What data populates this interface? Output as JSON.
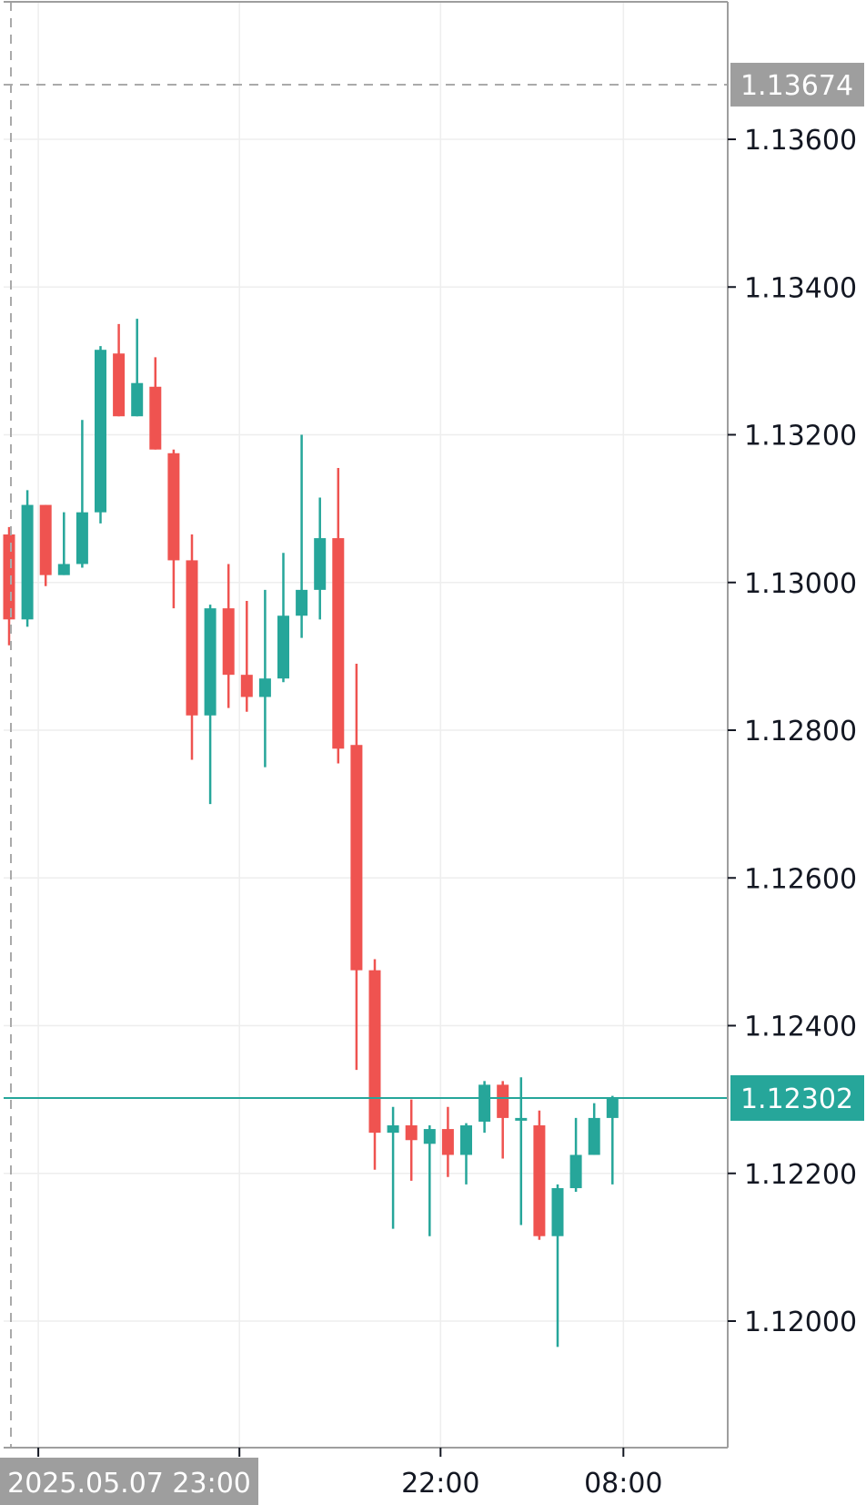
{
  "chart_data": {
    "type": "candlestick",
    "y_ticks": [
      "1.13600",
      "1.13400",
      "1.13200",
      "1.13000",
      "1.12800",
      "1.12600",
      "1.12400",
      "1.12200",
      "1.12000"
    ],
    "ylim": [
      1.1185,
      1.1382
    ],
    "x_tick_labels": [
      ":00",
      "22:00",
      "08:00"
    ],
    "crosshair_price": "1.13674",
    "crosshair_time": "2025.05.07 23:00",
    "last_price": "1.12302",
    "colors": {
      "up": "#26a69a",
      "down": "#ef5350",
      "grid": "#eeeeee",
      "axis": "#9e9e9e",
      "crosshair": "#aaaaaa",
      "crosshair_tag": "#9e9e9e"
    },
    "candles": [
      {
        "o": 1.13065,
        "h": 1.13075,
        "l": 1.12915,
        "c": 1.1295
      },
      {
        "o": 1.1295,
        "h": 1.13125,
        "l": 1.1294,
        "c": 1.13105
      },
      {
        "o": 1.13105,
        "h": 1.13105,
        "l": 1.12995,
        "c": 1.1301
      },
      {
        "o": 1.1301,
        "h": 1.13095,
        "l": 1.1301,
        "c": 1.13025
      },
      {
        "o": 1.13025,
        "h": 1.1322,
        "l": 1.1302,
        "c": 1.13095
      },
      {
        "o": 1.13095,
        "h": 1.1332,
        "l": 1.1308,
        "c": 1.13315
      },
      {
        "o": 1.1331,
        "h": 1.1335,
        "l": 1.13225,
        "c": 1.13225
      },
      {
        "o": 1.13225,
        "h": 1.13357,
        "l": 1.13225,
        "c": 1.1327
      },
      {
        "o": 1.13265,
        "h": 1.13305,
        "l": 1.1318,
        "c": 1.1318
      },
      {
        "o": 1.13175,
        "h": 1.1318,
        "l": 1.12965,
        "c": 1.1303
      },
      {
        "o": 1.1303,
        "h": 1.13065,
        "l": 1.1276,
        "c": 1.1282
      },
      {
        "o": 1.1282,
        "h": 1.1297,
        "l": 1.127,
        "c": 1.12965
      },
      {
        "o": 1.12965,
        "h": 1.13025,
        "l": 1.1283,
        "c": 1.12875
      },
      {
        "o": 1.12875,
        "h": 1.12975,
        "l": 1.12825,
        "c": 1.12845
      },
      {
        "o": 1.12845,
        "h": 1.1299,
        "l": 1.1275,
        "c": 1.1287
      },
      {
        "o": 1.1287,
        "h": 1.1304,
        "l": 1.12865,
        "c": 1.12955
      },
      {
        "o": 1.12955,
        "h": 1.132,
        "l": 1.12925,
        "c": 1.1299
      },
      {
        "o": 1.1299,
        "h": 1.13115,
        "l": 1.1295,
        "c": 1.1306
      },
      {
        "o": 1.1306,
        "h": 1.13155,
        "l": 1.12755,
        "c": 1.12775
      },
      {
        "o": 1.1278,
        "h": 1.1289,
        "l": 1.1234,
        "c": 1.12475
      },
      {
        "o": 1.12475,
        "h": 1.1249,
        "l": 1.12205,
        "c": 1.12255
      },
      {
        "o": 1.12255,
        "h": 1.1229,
        "l": 1.12125,
        "c": 1.12265
      },
      {
        "o": 1.12265,
        "h": 1.123,
        "l": 1.1219,
        "c": 1.12245
      },
      {
        "o": 1.1224,
        "h": 1.12265,
        "l": 1.12115,
        "c": 1.1226
      },
      {
        "o": 1.1226,
        "h": 1.1229,
        "l": 1.12195,
        "c": 1.12225
      },
      {
        "o": 1.12225,
        "h": 1.12268,
        "l": 1.12185,
        "c": 1.12265
      },
      {
        "o": 1.1227,
        "h": 1.12325,
        "l": 1.12255,
        "c": 1.1232
      },
      {
        "o": 1.1232,
        "h": 1.12325,
        "l": 1.1222,
        "c": 1.12275
      },
      {
        "o": 1.12275,
        "h": 1.1233,
        "l": 1.1213,
        "c": 1.12275
      },
      {
        "o": 1.12265,
        "h": 1.12285,
        "l": 1.1211,
        "c": 1.12115
      },
      {
        "o": 1.12115,
        "h": 1.12185,
        "l": 1.11965,
        "c": 1.1218
      },
      {
        "o": 1.1218,
        "h": 1.12275,
        "l": 1.12175,
        "c": 1.12225
      },
      {
        "o": 1.12225,
        "h": 1.12295,
        "l": 1.12225,
        "c": 1.12275
      },
      {
        "o": 1.12275,
        "h": 1.12305,
        "l": 1.12185,
        "c": 1.12302
      }
    ]
  }
}
